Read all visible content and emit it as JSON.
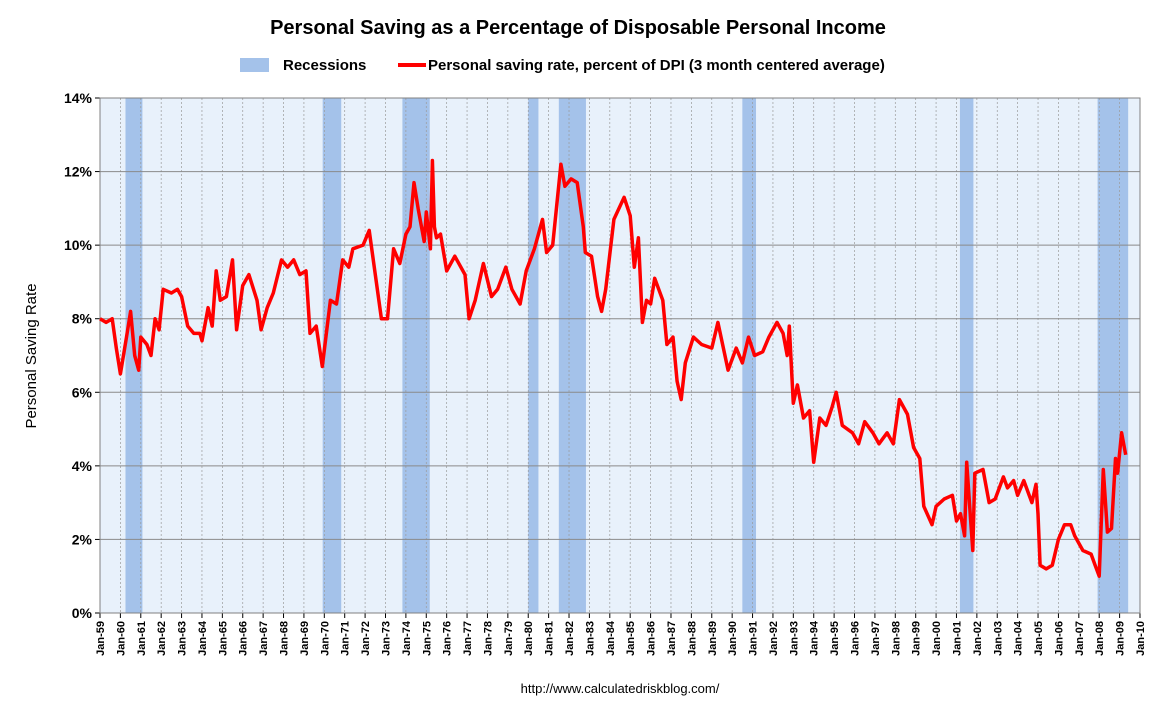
{
  "chart_data": {
    "type": "line",
    "title": "Personal Saving as a Percentage of Disposable Personal Income",
    "y_label": "Personal Saving Rate",
    "source": "http://www.calculatedriskblog.com/",
    "grid": true,
    "recessions": {
      "name": "Recessions",
      "color": "#a4c2ea",
      "spans": [
        [
          1960.25,
          1961.08
        ],
        [
          1969.92,
          1970.83
        ],
        [
          1973.83,
          1975.17
        ],
        [
          1980.0,
          1980.5
        ],
        [
          1981.5,
          1982.83
        ],
        [
          1990.5,
          1991.17
        ],
        [
          2001.17,
          2001.83
        ],
        [
          2007.92,
          2009.42
        ]
      ]
    },
    "series": [
      {
        "name": "Personal saving rate, percent of DPI (3 month centered average)",
        "color": "#ff0000",
        "x": [
          1959.0,
          1959.3,
          1959.6,
          1959.8,
          1960.0,
          1960.3,
          1960.5,
          1960.7,
          1960.9,
          1961.0,
          1961.3,
          1961.5,
          1961.7,
          1961.9,
          1962.1,
          1962.5,
          1962.8,
          1963.0,
          1963.3,
          1963.6,
          1963.9,
          1964.0,
          1964.3,
          1964.5,
          1964.7,
          1964.9,
          1965.2,
          1965.5,
          1965.7,
          1966.0,
          1966.3,
          1966.7,
          1966.9,
          1967.2,
          1967.5,
          1967.9,
          1968.2,
          1968.5,
          1968.8,
          1969.1,
          1969.3,
          1969.6,
          1969.9,
          1970.3,
          1970.6,
          1970.9,
          1971.2,
          1971.4,
          1971.9,
          1972.2,
          1972.5,
          1972.8,
          1973.1,
          1973.4,
          1973.7,
          1974.0,
          1974.2,
          1974.4,
          1974.6,
          1974.9,
          1975.0,
          1975.2,
          1975.3,
          1975.4,
          1975.5,
          1975.7,
          1976.0,
          1976.4,
          1976.9,
          1977.1,
          1977.4,
          1977.8,
          1978.2,
          1978.5,
          1978.9,
          1979.2,
          1979.6,
          1979.9,
          1980.3,
          1980.7,
          1980.9,
          1981.2,
          1981.6,
          1981.8,
          1982.1,
          1982.4,
          1982.7,
          1982.8,
          1983.1,
          1983.4,
          1983.6,
          1983.8,
          1984.2,
          1984.7,
          1985.0,
          1985.2,
          1985.4,
          1985.6,
          1985.8,
          1986.0,
          1986.2,
          1986.6,
          1986.8,
          1987.1,
          1987.3,
          1987.5,
          1987.7,
          1988.1,
          1988.5,
          1989.0,
          1989.3,
          1989.8,
          1990.2,
          1990.5,
          1990.8,
          1991.1,
          1991.5,
          1991.8,
          1992.2,
          1992.5,
          1992.7,
          1992.8,
          1993.0,
          1993.2,
          1993.5,
          1993.8,
          1994.0,
          1994.3,
          1994.6,
          1994.9,
          1995.1,
          1995.4,
          1995.9,
          1996.2,
          1996.5,
          1996.9,
          1997.2,
          1997.6,
          1997.9,
          1998.2,
          1998.6,
          1998.9,
          1999.2,
          1999.4,
          1999.8,
          2000.0,
          2000.4,
          2000.8,
          2001.0,
          2001.2,
          2001.4,
          2001.5,
          2001.7,
          2001.8,
          2001.9,
          2002.3,
          2002.6,
          2002.9,
          2003.3,
          2003.5,
          2003.8,
          2004.0,
          2004.3,
          2004.7,
          2004.9,
          2005.0,
          2005.1,
          2005.4,
          2005.7,
          2006.0,
          2006.3,
          2006.6,
          2006.8,
          2007.2,
          2007.6,
          2007.8,
          2008.0,
          2008.2,
          2008.4,
          2008.6,
          2008.8,
          2008.9,
          2009.1,
          2009.3
        ],
        "values": [
          8.0,
          7.9,
          8.0,
          7.2,
          6.5,
          7.5,
          8.2,
          7.0,
          6.6,
          7.5,
          7.3,
          7.0,
          8.0,
          7.7,
          8.8,
          8.7,
          8.8,
          8.6,
          7.8,
          7.6,
          7.6,
          7.4,
          8.3,
          7.8,
          9.3,
          8.5,
          8.6,
          9.6,
          7.7,
          8.9,
          9.2,
          8.5,
          7.7,
          8.3,
          8.7,
          9.6,
          9.4,
          9.6,
          9.2,
          9.3,
          7.6,
          7.8,
          6.7,
          8.5,
          8.4,
          9.6,
          9.4,
          9.9,
          10.0,
          10.4,
          9.2,
          8.0,
          8.0,
          9.9,
          9.5,
          10.3,
          10.5,
          11.7,
          11.0,
          10.1,
          10.9,
          9.9,
          12.3,
          10.5,
          10.2,
          10.3,
          9.3,
          9.7,
          9.2,
          8.0,
          8.5,
          9.5,
          8.6,
          8.8,
          9.4,
          8.8,
          8.4,
          9.3,
          9.9,
          10.7,
          9.8,
          10.0,
          12.2,
          11.6,
          11.8,
          11.7,
          10.5,
          9.8,
          9.7,
          8.6,
          8.2,
          8.8,
          10.7,
          11.3,
          10.8,
          9.4,
          10.2,
          7.9,
          8.5,
          8.4,
          9.1,
          8.5,
          7.3,
          7.5,
          6.3,
          5.8,
          6.8,
          7.5,
          7.3,
          7.2,
          7.9,
          6.6,
          7.2,
          6.8,
          7.5,
          7.0,
          7.1,
          7.5,
          7.9,
          7.6,
          7.0,
          7.8,
          5.7,
          6.2,
          5.3,
          5.5,
          4.1,
          5.3,
          5.1,
          5.6,
          6.0,
          5.1,
          4.9,
          4.6,
          5.2,
          4.9,
          4.6,
          4.9,
          4.6,
          5.8,
          5.4,
          4.5,
          4.2,
          2.9,
          2.4,
          2.9,
          3.1,
          3.2,
          2.5,
          2.7,
          2.1,
          4.1,
          2.5,
          1.7,
          3.8,
          3.9,
          3.0,
          3.1,
          3.7,
          3.4,
          3.6,
          3.2,
          3.6,
          3.0,
          3.5,
          2.7,
          1.3,
          1.2,
          1.3,
          2.0,
          2.4,
          2.4,
          2.1,
          1.7,
          1.6,
          1.3,
          1.0,
          3.9,
          2.2,
          2.3,
          4.2,
          3.8,
          4.9,
          4.3
        ]
      }
    ],
    "xlim": [
      1959,
      2010
    ],
    "xticks": [
      {
        "value": 1959,
        "label": "Jan-59"
      },
      {
        "value": 1960,
        "label": "Jan-60"
      },
      {
        "value": 1961,
        "label": "Jan-61"
      },
      {
        "value": 1962,
        "label": "Jan-62"
      },
      {
        "value": 1963,
        "label": "Jan-63"
      },
      {
        "value": 1964,
        "label": "Jan-64"
      },
      {
        "value": 1965,
        "label": "Jan-65"
      },
      {
        "value": 1966,
        "label": "Jan-66"
      },
      {
        "value": 1967,
        "label": "Jan-67"
      },
      {
        "value": 1968,
        "label": "Jan-68"
      },
      {
        "value": 1969,
        "label": "Jan-69"
      },
      {
        "value": 1970,
        "label": "Jan-70"
      },
      {
        "value": 1971,
        "label": "Jan-71"
      },
      {
        "value": 1972,
        "label": "Jan-72"
      },
      {
        "value": 1973,
        "label": "Jan-73"
      },
      {
        "value": 1974,
        "label": "Jan-74"
      },
      {
        "value": 1975,
        "label": "Jan-75"
      },
      {
        "value": 1976,
        "label": "Jan-76"
      },
      {
        "value": 1977,
        "label": "Jan-77"
      },
      {
        "value": 1978,
        "label": "Jan-78"
      },
      {
        "value": 1979,
        "label": "Jan-79"
      },
      {
        "value": 1980,
        "label": "Jan-80"
      },
      {
        "value": 1981,
        "label": "Jan-81"
      },
      {
        "value": 1982,
        "label": "Jan-82"
      },
      {
        "value": 1983,
        "label": "Jan-83"
      },
      {
        "value": 1984,
        "label": "Jan-84"
      },
      {
        "value": 1985,
        "label": "Jan-85"
      },
      {
        "value": 1986,
        "label": "Jan-86"
      },
      {
        "value": 1987,
        "label": "Jan-87"
      },
      {
        "value": 1988,
        "label": "Jan-88"
      },
      {
        "value": 1989,
        "label": "Jan-89"
      },
      {
        "value": 1990,
        "label": "Jan-90"
      },
      {
        "value": 1991,
        "label": "Jan-91"
      },
      {
        "value": 1992,
        "label": "Jan-92"
      },
      {
        "value": 1993,
        "label": "Jan-93"
      },
      {
        "value": 1994,
        "label": "Jan-94"
      },
      {
        "value": 1995,
        "label": "Jan-95"
      },
      {
        "value": 1996,
        "label": "Jan-96"
      },
      {
        "value": 1997,
        "label": "Jan-97"
      },
      {
        "value": 1998,
        "label": "Jan-98"
      },
      {
        "value": 1999,
        "label": "Jan-99"
      },
      {
        "value": 2000,
        "label": "Jan-00"
      },
      {
        "value": 2001,
        "label": "Jan-01"
      },
      {
        "value": 2002,
        "label": "Jan-02"
      },
      {
        "value": 2003,
        "label": "Jan-03"
      },
      {
        "value": 2004,
        "label": "Jan-04"
      },
      {
        "value": 2005,
        "label": "Jan-05"
      },
      {
        "value": 2006,
        "label": "Jan-06"
      },
      {
        "value": 2007,
        "label": "Jan-07"
      },
      {
        "value": 2008,
        "label": "Jan-08"
      },
      {
        "value": 2009,
        "label": "Jan-09"
      },
      {
        "value": 2010,
        "label": "Jan-10"
      }
    ],
    "ylim": [
      0,
      14
    ],
    "yticks": [
      {
        "value": 0,
        "label": "0%"
      },
      {
        "value": 2,
        "label": "2%"
      },
      {
        "value": 4,
        "label": "4%"
      },
      {
        "value": 6,
        "label": "6%"
      },
      {
        "value": 8,
        "label": "8%"
      },
      {
        "value": 10,
        "label": "10%"
      },
      {
        "value": 12,
        "label": "12%"
      },
      {
        "value": 14,
        "label": "14%"
      }
    ]
  }
}
